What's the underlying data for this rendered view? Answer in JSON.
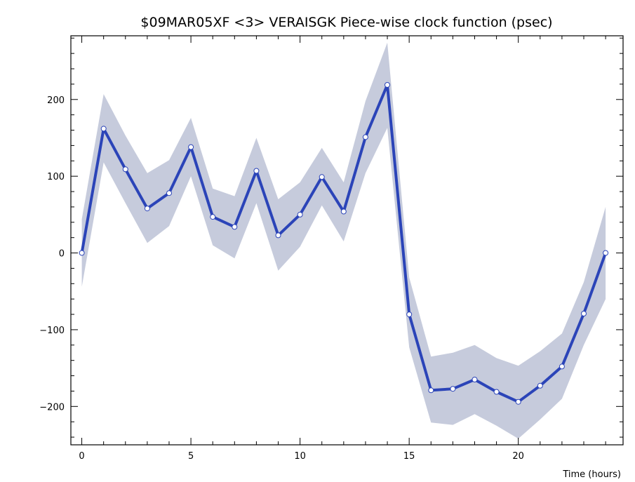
{
  "chart_data": {
    "type": "line",
    "title": "$09MAR05XF <3>  VERAISGK  Piece-wise clock function (psec)",
    "xlabel": "Time (hours)",
    "ylabel": "",
    "xlim": [
      -0.5,
      24.8
    ],
    "ylim": [
      -250,
      283
    ],
    "x_ticks": [
      0,
      5,
      10,
      15,
      20
    ],
    "y_ticks": [
      -200,
      -100,
      0,
      100,
      200
    ],
    "grid": false,
    "x": [
      0,
      1,
      2,
      3,
      4,
      5,
      6,
      7,
      8,
      9,
      10,
      11,
      12,
      13,
      14,
      15,
      16,
      17,
      18,
      19,
      20,
      21,
      22,
      23,
      24
    ],
    "series": [
      {
        "values": [
          0,
          162,
          109,
          58,
          78,
          138,
          47,
          34,
          107,
          23,
          50,
          99,
          54,
          151,
          219,
          -80,
          -179,
          -177,
          -165,
          -181,
          -194,
          -173,
          -148,
          -79,
          0
        ],
        "lower": [
          -44,
          118,
          65,
          13,
          35,
          100,
          10,
          -7,
          65,
          -23,
          8,
          62,
          15,
          104,
          163,
          -123,
          -221,
          -224,
          -210,
          -225,
          -242,
          -217,
          -190,
          -120,
          -60
        ],
        "upper": [
          44,
          207,
          153,
          104,
          121,
          176,
          84,
          74,
          150,
          70,
          92,
          137,
          92,
          198,
          274,
          -32,
          -135,
          -130,
          -120,
          -137,
          -147,
          -128,
          -105,
          -38,
          60
        ]
      }
    ],
    "colors": {
      "line": "#2b44b8",
      "band": "#c6cbdc",
      "marker_fill": "#ffffff",
      "axis": "#000000"
    }
  }
}
